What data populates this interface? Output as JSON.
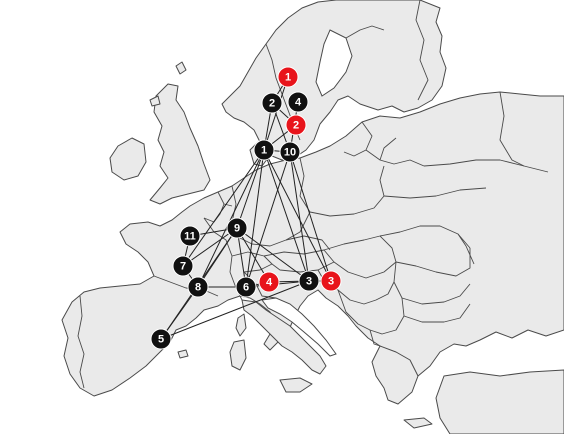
{
  "map": {
    "colors": {
      "land": "#eaeaea",
      "border": "#4a4a4a",
      "sea": "#ffffff",
      "link": "#222222",
      "node_black": "#111111",
      "node_red": "#e8141b",
      "label": "#ffffff"
    },
    "nodes": [
      {
        "id": "black-1",
        "label": "1",
        "color": "black"
      },
      {
        "id": "black-2",
        "label": "2",
        "color": "black"
      },
      {
        "id": "black-3",
        "label": "3",
        "color": "black"
      },
      {
        "id": "black-4",
        "label": "4",
        "color": "black"
      },
      {
        "id": "black-5",
        "label": "5",
        "color": "black"
      },
      {
        "id": "black-6",
        "label": "6",
        "color": "black"
      },
      {
        "id": "black-7",
        "label": "7",
        "color": "black"
      },
      {
        "id": "black-8",
        "label": "8",
        "color": "black"
      },
      {
        "id": "black-9",
        "label": "9",
        "color": "black"
      },
      {
        "id": "black-10",
        "label": "10",
        "color": "black"
      },
      {
        "id": "black-11",
        "label": "11",
        "color": "black"
      },
      {
        "id": "red-1",
        "label": "1",
        "color": "red"
      },
      {
        "id": "red-2",
        "label": "2",
        "color": "red"
      },
      {
        "id": "red-3",
        "label": "3",
        "color": "red"
      },
      {
        "id": "red-4",
        "label": "4",
        "color": "red"
      }
    ],
    "links": [
      [
        "black-2",
        "black-1"
      ],
      [
        "black-2",
        "black-10"
      ],
      [
        "black-2",
        "red-1"
      ],
      [
        "black-2",
        "red-2"
      ],
      [
        "black-4",
        "black-10"
      ],
      [
        "red-1",
        "black-1"
      ],
      [
        "red-2",
        "black-1"
      ],
      [
        "black-1",
        "black-10"
      ],
      [
        "black-1",
        "black-9"
      ],
      [
        "black-1",
        "black-7"
      ],
      [
        "black-1",
        "black-6"
      ],
      [
        "black-1",
        "black-3"
      ],
      [
        "black-1",
        "red-3"
      ],
      [
        "black-1",
        "black-8"
      ],
      [
        "black-10",
        "black-3"
      ],
      [
        "black-10",
        "red-3"
      ],
      [
        "black-10",
        "black-6"
      ],
      [
        "black-11",
        "black-9"
      ],
      [
        "black-11",
        "black-7"
      ],
      [
        "black-9",
        "black-7"
      ],
      [
        "black-9",
        "black-8"
      ],
      [
        "black-9",
        "black-6"
      ],
      [
        "black-9",
        "red-4"
      ],
      [
        "black-9",
        "black-3"
      ],
      [
        "black-9",
        "black-5"
      ],
      [
        "black-7",
        "black-8"
      ],
      [
        "black-8",
        "black-6"
      ],
      [
        "black-8",
        "black-5"
      ],
      [
        "black-6",
        "red-4"
      ],
      [
        "red-4",
        "black-3"
      ],
      [
        "black-3",
        "red-3"
      ],
      [
        "black-5",
        "black-3"
      ],
      [
        "black-6",
        "black-3"
      ]
    ]
  }
}
